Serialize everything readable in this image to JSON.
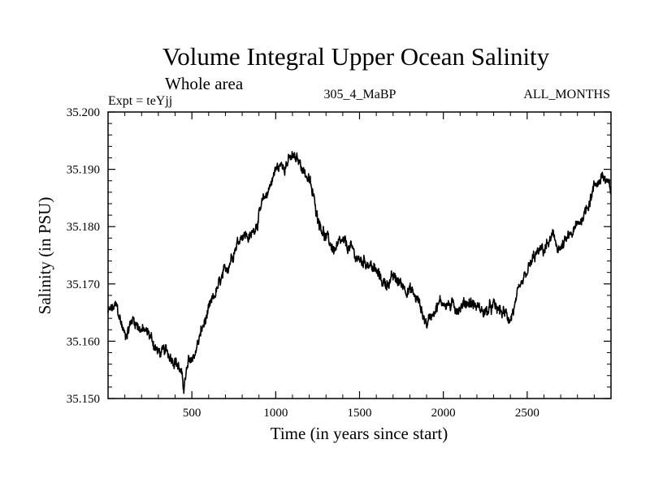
{
  "chart_data": {
    "type": "line",
    "title": "Volume Integral Upper Ocean Salinity",
    "subtitle": "Whole area",
    "experiment_label": "Expt = teYjj",
    "run_label": "305_4_MaBP",
    "months_label": "ALL_MONTHS",
    "xlabel": "Time (in years since start)",
    "ylabel": "Salinity (in PSU)",
    "xlim": [
      0,
      3000
    ],
    "ylim": [
      35.15,
      35.2
    ],
    "xticks": [
      500,
      1000,
      1500,
      2000,
      2500
    ],
    "xtick_labels": [
      "500",
      "1000",
      "1500",
      "2000",
      "2500"
    ],
    "yticks": [
      35.15,
      35.16,
      35.17,
      35.18,
      35.19,
      35.2
    ],
    "ytick_labels": [
      "35.150",
      "35.160",
      "35.170",
      "35.180",
      "35.190",
      "35.200"
    ],
    "grid": false,
    "legend": "none",
    "series": [
      {
        "name": "Salinity",
        "x": [
          0,
          50,
          100,
          150,
          200,
          250,
          300,
          350,
          400,
          430,
          450,
          480,
          520,
          560,
          600,
          650,
          700,
          750,
          800,
          850,
          900,
          950,
          1000,
          1050,
          1100,
          1150,
          1200,
          1250,
          1300,
          1350,
          1400,
          1450,
          1500,
          1550,
          1600,
          1650,
          1700,
          1750,
          1800,
          1850,
          1900,
          1950,
          2000,
          2050,
          2100,
          2150,
          2200,
          2250,
          2300,
          2350,
          2400,
          2450,
          2500,
          2550,
          2600,
          2650,
          2700,
          2750,
          2800,
          2850,
          2900,
          2950,
          3000
        ],
        "values": [
          35.165,
          35.166,
          35.161,
          35.164,
          35.162,
          35.161,
          35.158,
          35.158,
          35.157,
          35.155,
          35.152,
          35.156,
          35.158,
          35.162,
          35.165,
          35.169,
          35.172,
          35.176,
          35.179,
          35.178,
          35.182,
          35.186,
          35.19,
          35.191,
          35.192,
          35.191,
          35.188,
          35.182,
          35.178,
          35.176,
          35.177,
          35.176,
          35.174,
          35.174,
          35.172,
          35.17,
          35.171,
          35.17,
          35.169,
          35.167,
          35.163,
          35.166,
          35.167,
          35.166,
          35.166,
          35.167,
          35.166,
          35.165,
          35.166,
          35.165,
          35.164,
          35.168,
          35.172,
          35.175,
          35.176,
          35.178,
          35.176,
          35.178,
          35.18,
          35.183,
          35.187,
          35.189,
          35.186
        ]
      }
    ]
  }
}
